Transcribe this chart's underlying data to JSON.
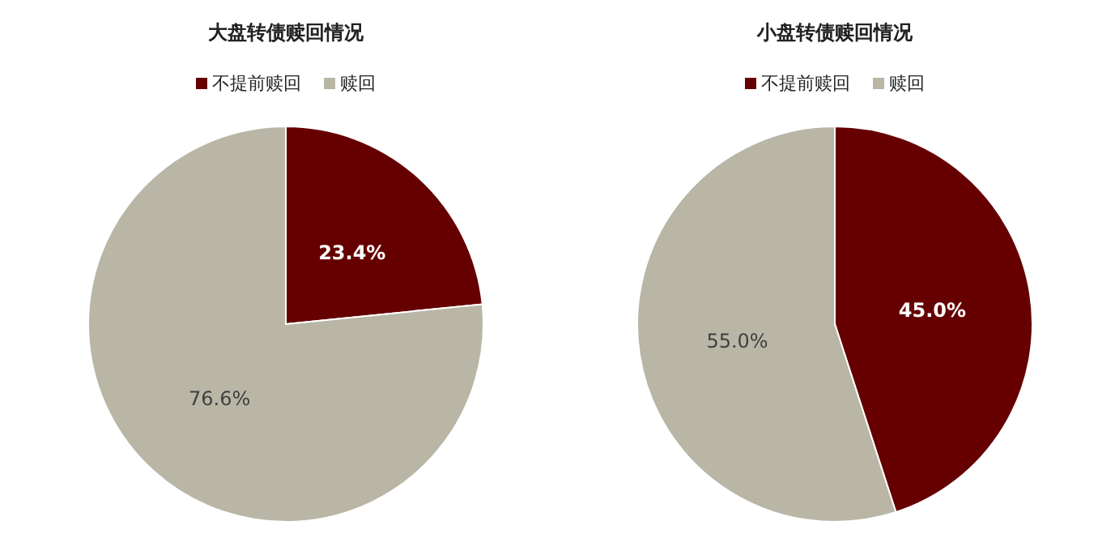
{
  "chart_data": [
    {
      "type": "pie",
      "title": "大盘转债赎回情况",
      "categories": [
        "不提前赎回",
        "赎回"
      ],
      "values": [
        23.4,
        76.6
      ],
      "colors": [
        "#660000",
        "#b9b6a6"
      ],
      "value_labels": [
        "23.4%",
        "76.6%"
      ],
      "legend": "top"
    },
    {
      "type": "pie",
      "title": "小盘转债赎回情况",
      "categories": [
        "不提前赎回",
        "赎回"
      ],
      "values": [
        45.0,
        55.0
      ],
      "colors": [
        "#660000",
        "#b9b6a6"
      ],
      "value_labels": [
        "45.0%",
        "55.0%"
      ],
      "legend": "top"
    }
  ]
}
